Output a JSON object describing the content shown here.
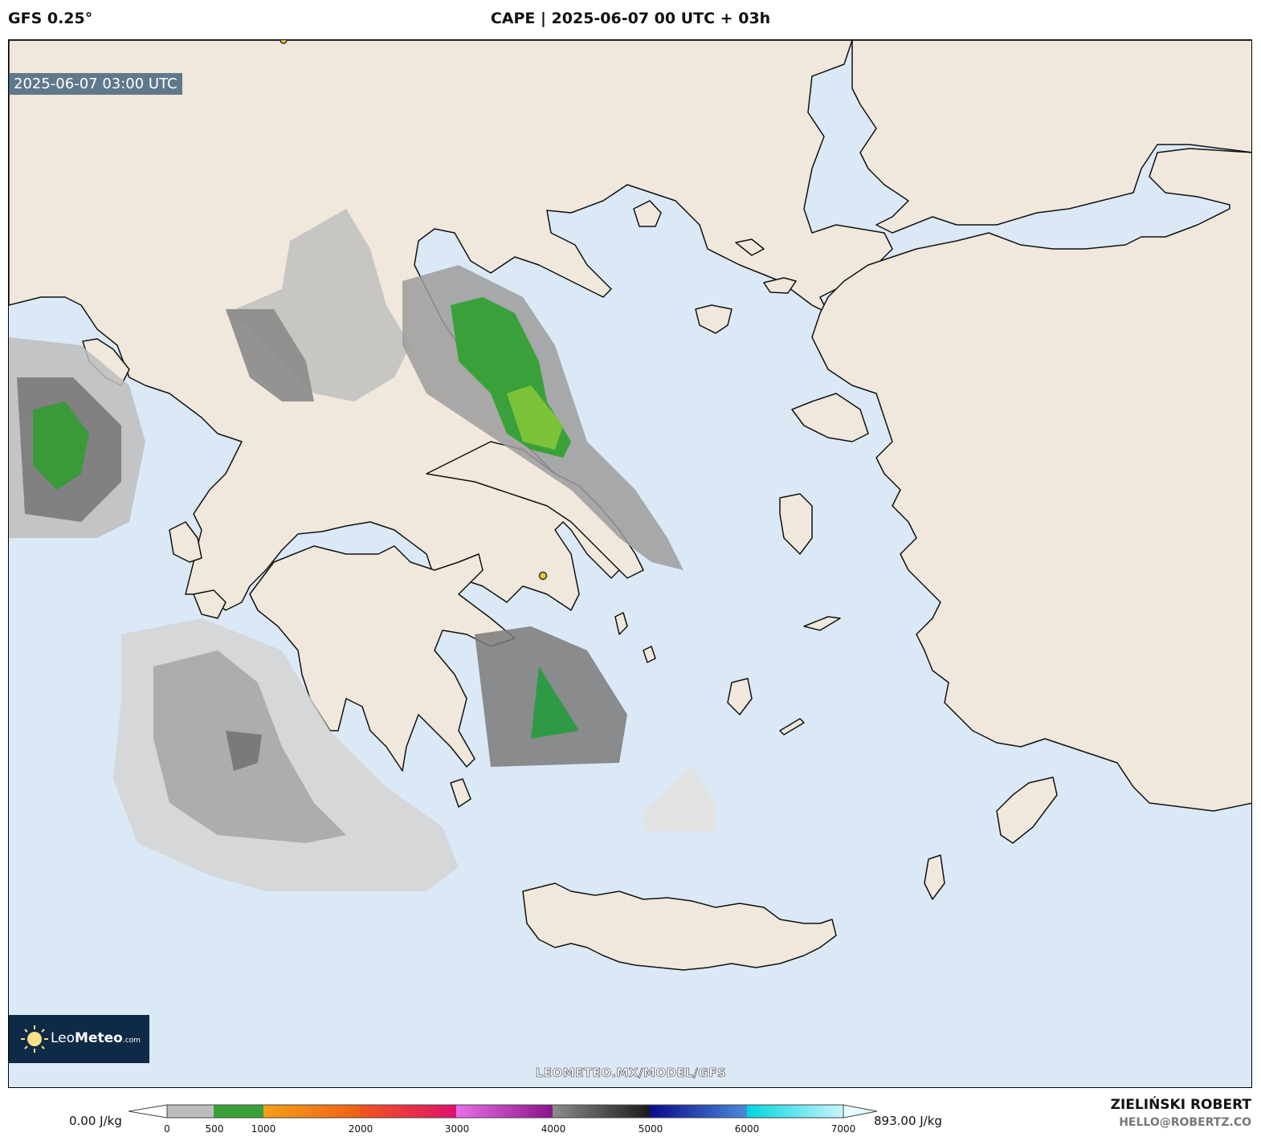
{
  "header": {
    "model": "GFS 0.25°",
    "title": "CAPE | 2025-06-07 00 UTC + 03h"
  },
  "map": {
    "timestamp": "2025-06-07 03:00 UTC",
    "watermark_url": "LEOMETEO.MX/MODEL/GFS",
    "logo": {
      "text_light": "Leo",
      "text_bold": "Meteo",
      "text_small": ".com"
    },
    "colors": {
      "sea": "#dbe9f7",
      "land": "#f0e8dc",
      "coast": "#111111"
    }
  },
  "colorbar": {
    "min_label": "0.00 J/kg",
    "max_label": "893.00 J/kg",
    "ticks": [
      "0",
      "500",
      "1000",
      "2000",
      "3000",
      "4000",
      "5000",
      "6000",
      "7000"
    ]
  },
  "credits": {
    "author": "ZIELIŃSKI ROBERT",
    "email": "HELLO@ROBERTZ.CO"
  }
}
